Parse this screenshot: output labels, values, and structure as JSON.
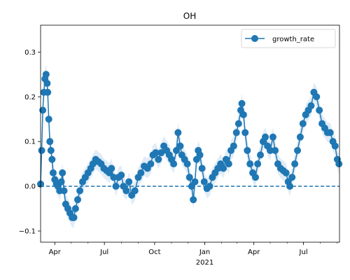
{
  "chart_data": {
    "type": "line",
    "title": "OH",
    "xlabel": "",
    "ylabel": "",
    "x_range": [
      "2020-03-06",
      "2021-09-05"
    ],
    "ylim": [
      -0.125,
      0.36
    ],
    "y_ticks": [
      -0.1,
      0.0,
      0.1,
      0.2,
      0.3
    ],
    "y_tick_labels": [
      "−0.1",
      "0.0",
      "0.1",
      "0.2",
      "0.3"
    ],
    "x_ticks": [
      {
        "date": "2020-04-01",
        "label": "Apr"
      },
      {
        "date": "2020-07-01",
        "label": "Jul"
      },
      {
        "date": "2020-10-01",
        "label": "Oct"
      },
      {
        "date": "2021-01-01",
        "label": "Jan"
      },
      {
        "date": "2021-04-01",
        "label": "Apr"
      },
      {
        "date": "2021-07-01",
        "label": "Jul"
      }
    ],
    "x_year_label": {
      "date": "2021-01-01",
      "label": "2021"
    },
    "reference_line": {
      "y": 0.0,
      "style": "dashed"
    },
    "legend": {
      "position": "upper right",
      "entries": [
        "growth_rate"
      ]
    },
    "grid": false,
    "series": [
      {
        "name": "growth_rate",
        "color": "#1f77b4",
        "marker": "circle",
        "band_color": "#d6e6f4",
        "points": [
          [
            "2020-03-06",
            0.005
          ],
          [
            "2020-03-08",
            0.08
          ],
          [
            "2020-03-10",
            0.17
          ],
          [
            "2020-03-12",
            0.21
          ],
          [
            "2020-03-14",
            0.24
          ],
          [
            "2020-03-16",
            0.25
          ],
          [
            "2020-03-18",
            0.23
          ],
          [
            "2020-03-19",
            0.21
          ],
          [
            "2020-03-21",
            0.15
          ],
          [
            "2020-03-23",
            0.1
          ],
          [
            "2020-03-25",
            0.08
          ],
          [
            "2020-03-27",
            0.06
          ],
          [
            "2020-03-29",
            0.03
          ],
          [
            "2020-04-01",
            0.015
          ],
          [
            "2020-04-04",
            0.005
          ],
          [
            "2020-04-07",
            0.0
          ],
          [
            "2020-04-10",
            -0.01
          ],
          [
            "2020-04-13",
            0.01
          ],
          [
            "2020-04-15",
            0.03
          ],
          [
            "2020-04-18",
            -0.01
          ],
          [
            "2020-04-21",
            -0.04
          ],
          [
            "2020-04-25",
            -0.05
          ],
          [
            "2020-04-29",
            -0.06
          ],
          [
            "2020-05-03",
            -0.07
          ],
          [
            "2020-05-06",
            -0.07
          ],
          [
            "2020-05-09",
            -0.05
          ],
          [
            "2020-05-13",
            -0.03
          ],
          [
            "2020-05-17",
            -0.01
          ],
          [
            "2020-05-22",
            0.01
          ],
          [
            "2020-05-27",
            0.02
          ],
          [
            "2020-06-01",
            0.03
          ],
          [
            "2020-06-06",
            0.04
          ],
          [
            "2020-06-10",
            0.05
          ],
          [
            "2020-06-15",
            0.06
          ],
          [
            "2020-06-20",
            0.055
          ],
          [
            "2020-06-25",
            0.05
          ],
          [
            "2020-06-30",
            0.04
          ],
          [
            "2020-07-05",
            0.035
          ],
          [
            "2020-07-10",
            0.03
          ],
          [
            "2020-07-14",
            0.04
          ],
          [
            "2020-07-18",
            0.02
          ],
          [
            "2020-07-22",
            0.0
          ],
          [
            "2020-07-27",
            0.02
          ],
          [
            "2020-08-01",
            0.025
          ],
          [
            "2020-08-05",
            0.0
          ],
          [
            "2020-08-10",
            -0.01
          ],
          [
            "2020-08-15",
            0.01
          ],
          [
            "2020-08-20",
            -0.02
          ],
          [
            "2020-08-26",
            -0.01
          ],
          [
            "2020-09-01",
            0.02
          ],
          [
            "2020-09-06",
            0.03
          ],
          [
            "2020-09-12",
            0.045
          ],
          [
            "2020-09-18",
            0.04
          ],
          [
            "2020-09-24",
            0.05
          ],
          [
            "2020-09-28",
            0.07
          ],
          [
            "2020-10-03",
            0.075
          ],
          [
            "2020-10-08",
            0.06
          ],
          [
            "2020-10-13",
            0.075
          ],
          [
            "2020-10-18",
            0.09
          ],
          [
            "2020-10-23",
            0.08
          ],
          [
            "2020-10-28",
            0.07
          ],
          [
            "2020-11-01",
            0.06
          ],
          [
            "2020-11-05",
            0.05
          ],
          [
            "2020-11-10",
            0.08
          ],
          [
            "2020-11-13",
            0.12
          ],
          [
            "2020-11-17",
            0.09
          ],
          [
            "2020-11-20",
            0.07
          ],
          [
            "2020-11-25",
            0.06
          ],
          [
            "2020-11-30",
            0.05
          ],
          [
            "2020-12-04",
            0.02
          ],
          [
            "2020-12-08",
            0.0
          ],
          [
            "2020-12-11",
            -0.03
          ],
          [
            "2020-12-14",
            0.01
          ],
          [
            "2020-12-17",
            0.06
          ],
          [
            "2020-12-20",
            0.08
          ],
          [
            "2020-12-23",
            0.07
          ],
          [
            "2020-12-27",
            0.04
          ],
          [
            "2020-12-31",
            0.01
          ],
          [
            "2021-01-05",
            -0.005
          ],
          [
            "2021-01-10",
            0.0
          ],
          [
            "2021-01-15",
            0.02
          ],
          [
            "2021-01-20",
            0.03
          ],
          [
            "2021-01-25",
            0.04
          ],
          [
            "2021-01-30",
            0.05
          ],
          [
            "2021-02-04",
            0.04
          ],
          [
            "2021-02-09",
            0.06
          ],
          [
            "2021-02-14",
            0.05
          ],
          [
            "2021-02-18",
            0.08
          ],
          [
            "2021-02-23",
            0.09
          ],
          [
            "2021-02-28",
            0.12
          ],
          [
            "2021-03-04",
            0.14
          ],
          [
            "2021-03-08",
            0.17
          ],
          [
            "2021-03-10",
            0.185
          ],
          [
            "2021-03-13",
            0.16
          ],
          [
            "2021-03-16",
            0.12
          ],
          [
            "2021-03-20",
            0.08
          ],
          [
            "2021-03-25",
            0.05
          ],
          [
            "2021-03-30",
            0.03
          ],
          [
            "2021-04-04",
            0.02
          ],
          [
            "2021-04-08",
            0.05
          ],
          [
            "2021-04-13",
            0.07
          ],
          [
            "2021-04-18",
            0.1
          ],
          [
            "2021-04-22",
            0.11
          ],
          [
            "2021-04-26",
            0.09
          ],
          [
            "2021-05-01",
            0.08
          ],
          [
            "2021-05-06",
            0.11
          ],
          [
            "2021-05-10",
            0.08
          ],
          [
            "2021-05-15",
            0.05
          ],
          [
            "2021-05-20",
            0.04
          ],
          [
            "2021-05-25",
            0.035
          ],
          [
            "2021-05-30",
            0.03
          ],
          [
            "2021-06-03",
            0.01
          ],
          [
            "2021-06-06",
            0.0
          ],
          [
            "2021-06-10",
            0.02
          ],
          [
            "2021-06-15",
            0.05
          ],
          [
            "2021-06-20",
            0.08
          ],
          [
            "2021-06-25",
            0.11
          ],
          [
            "2021-06-30",
            0.14
          ],
          [
            "2021-07-05",
            0.16
          ],
          [
            "2021-07-10",
            0.17
          ],
          [
            "2021-07-15",
            0.18
          ],
          [
            "2021-07-20",
            0.21
          ],
          [
            "2021-07-25",
            0.2
          ],
          [
            "2021-07-30",
            0.17
          ],
          [
            "2021-08-04",
            0.14
          ],
          [
            "2021-08-09",
            0.13
          ],
          [
            "2021-08-14",
            0.12
          ],
          [
            "2021-08-19",
            0.12
          ],
          [
            "2021-08-24",
            0.1
          ],
          [
            "2021-08-28",
            0.09
          ],
          [
            "2021-09-01",
            0.06
          ],
          [
            "2021-09-04",
            0.05
          ]
        ]
      }
    ]
  }
}
